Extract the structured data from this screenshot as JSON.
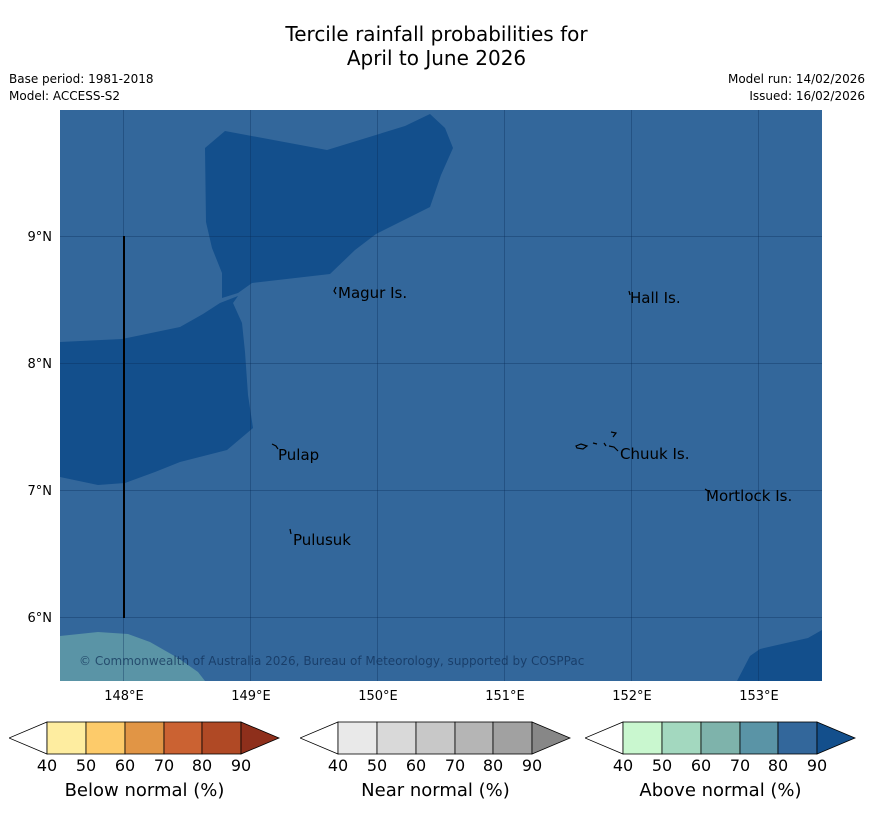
{
  "title": {
    "line1": "Tercile rainfall probabilities for",
    "line2": "April to June 2026"
  },
  "meta": {
    "base_period": "Base period: 1981-2018",
    "model": "Model: ACCESS-S2",
    "model_run": "Model run: 14/02/2026",
    "issued": "Issued: 16/02/2026"
  },
  "map": {
    "lon_range": [
      147.5,
      153.5
    ],
    "lat_range": [
      5.5,
      10.0
    ],
    "x_ticks": [
      "148°E",
      "149°E",
      "150°E",
      "151°E",
      "152°E",
      "153°E"
    ],
    "y_ticks": [
      "9°N",
      "8°N",
      "7°N",
      "6°N"
    ],
    "islands": [
      {
        "name": "Magur Is.",
        "lon": 149.67,
        "lat": 8.57
      },
      {
        "name": "Hall Is.",
        "lon": 151.98,
        "lat": 8.55
      },
      {
        "name": "Pulap",
        "lon": 149.2,
        "lat": 7.3
      },
      {
        "name": "Chuuk Is.",
        "lon": 151.85,
        "lat": 7.35
      },
      {
        "name": "Mortlock Is.",
        "lon": 152.6,
        "lat": 7.0
      },
      {
        "name": "Pulusuk",
        "lon": 149.32,
        "lat": 6.68
      }
    ],
    "copyright": "© Commonwealth of Australia 2026, Bureau of Meteorology, supported by COSPPac",
    "colors": {
      "above_70_80": "#33679b",
      "above_80_90": "#134f8c",
      "above_60_70": "#5a94a6",
      "grid": "#000000"
    }
  },
  "colorbars": [
    {
      "label": "Below normal (%)",
      "ticks": [
        "40",
        "50",
        "60",
        "70",
        "80",
        "90"
      ],
      "colors": [
        "#ffffff",
        "#feeda0",
        "#fdcb6a",
        "#e19545",
        "#cb6232",
        "#b04925",
        "#8e2f1b"
      ]
    },
    {
      "label": "Near normal (%)",
      "ticks": [
        "40",
        "50",
        "60",
        "70",
        "80",
        "90"
      ],
      "colors": [
        "#ffffff",
        "#e9e9e9",
        "#d9d9d9",
        "#c8c8c8",
        "#b5b5b5",
        "#a1a1a1",
        "#878787"
      ]
    },
    {
      "label": "Above normal (%)",
      "ticks": [
        "40",
        "50",
        "60",
        "70",
        "80",
        "90"
      ],
      "colors": [
        "#ffffff",
        "#c9f7cf",
        "#a3d8bf",
        "#7eb3ab",
        "#5a94a6",
        "#33679b",
        "#134f8c"
      ]
    }
  ]
}
